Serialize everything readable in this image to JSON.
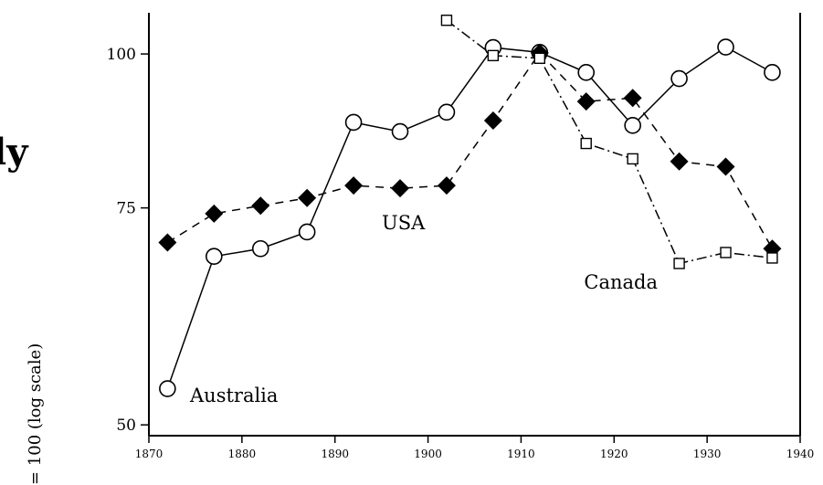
{
  "chart_data": {
    "type": "line",
    "title": "",
    "xlabel": "",
    "ylabel": "= 100 (log scale)",
    "y_scale": "log",
    "xlim": [
      1870,
      1940
    ],
    "ylim": [
      49,
      108
    ],
    "x_ticks": [
      1870,
      1880,
      1890,
      1900,
      1910,
      1920,
      1930,
      1940
    ],
    "y_ticks": [
      50,
      75,
      100
    ],
    "grid": false,
    "legend": "none",
    "cut_off_text": "ly",
    "series": [
      {
        "name": "Australia",
        "marker": "open-circle",
        "line": "solid",
        "color": "#000000",
        "x": [
          1872,
          1877,
          1882,
          1887,
          1892,
          1897,
          1902,
          1907,
          1912,
          1917,
          1922,
          1927,
          1932,
          1937
        ],
        "y": [
          53.5,
          68.5,
          69.5,
          71.7,
          88,
          86.5,
          89.7,
          101.2,
          100.3,
          96.6,
          87.5,
          95.5,
          101.3,
          96.6
        ]
      },
      {
        "name": "USA",
        "marker": "filled-diamond",
        "line": "dashed",
        "color": "#000000",
        "x": [
          1872,
          1877,
          1882,
          1887,
          1892,
          1897,
          1902,
          1907,
          1912,
          1917,
          1922,
          1927,
          1932,
          1937
        ],
        "y": [
          70.3,
          74.2,
          75.3,
          76.4,
          78.2,
          77.8,
          78.2,
          88.3,
          100.2,
          91.5,
          92.1,
          81.8,
          81,
          69.5
        ]
      },
      {
        "name": "Canada",
        "marker": "open-square",
        "line": "dash-dot",
        "color": "#000000",
        "x": [
          1902,
          1907,
          1912,
          1917,
          1922,
          1927,
          1932,
          1937
        ],
        "y": [
          106.5,
          99.7,
          99.2,
          84.6,
          82.2,
          67.6,
          69,
          68.3
        ]
      }
    ]
  }
}
